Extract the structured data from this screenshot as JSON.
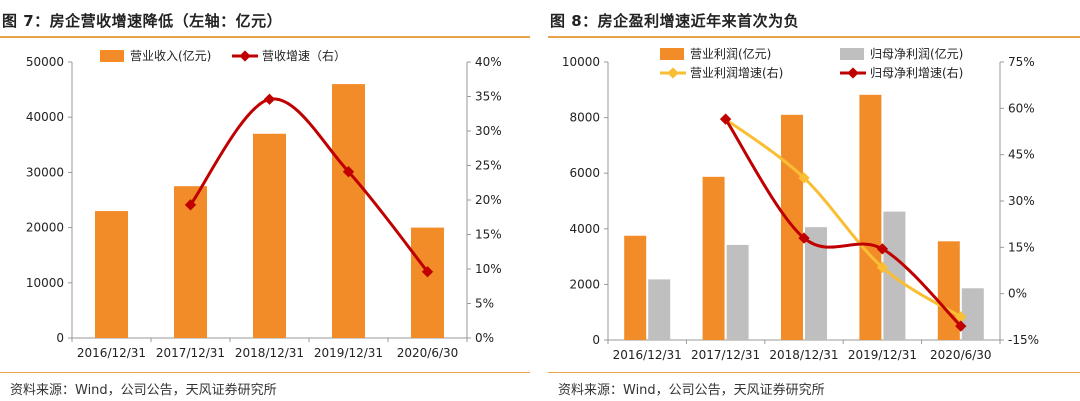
{
  "colors": {
    "bar_orange": "#f28c28",
    "bar_gray": "#bfbfbf",
    "line_red": "#c00000",
    "line_yellow": "#f9be33",
    "rule": "#e8a34a"
  },
  "left": {
    "title": "图 7：房企营收增速降低（左轴：亿元）",
    "source": "资料来源：Wind，公司公告，天风证券研究所"
  },
  "right": {
    "title": "图 8：房企盈利增速近年来首次为负",
    "source": "资料来源：Wind，公司公告，天风证券研究所"
  },
  "chart_data": [
    {
      "type": "bar",
      "categories": [
        "2016/12/31",
        "2017/12/31",
        "2018/12/31",
        "2019/12/31",
        "2020/6/30"
      ],
      "series": [
        {
          "name": "营业收入(亿元)",
          "type": "bar",
          "axis": "left",
          "color": "#f28c28",
          "values": [
            23000,
            27500,
            37000,
            46000,
            20000
          ]
        },
        {
          "name": "营收增速（右）",
          "type": "line",
          "axis": "right",
          "color": "#c00000",
          "values": [
            null,
            19.3,
            34.6,
            24.1,
            9.6
          ]
        }
      ],
      "ylim_left": [
        0,
        50000
      ],
      "yticks_left": [
        "0",
        "10000",
        "20000",
        "30000",
        "40000",
        "50000"
      ],
      "ylim_right": [
        0,
        40
      ],
      "yticks_right": [
        "0%",
        "5%",
        "10%",
        "15%",
        "20%",
        "25%",
        "30%",
        "35%",
        "40%"
      ],
      "legend": "top"
    },
    {
      "type": "bar",
      "categories": [
        "2016/12/31",
        "2017/12/31",
        "2018/12/31",
        "2019/12/31",
        "2020/6/30"
      ],
      "series": [
        {
          "name": "营业利润(亿元)",
          "type": "bar",
          "axis": "left",
          "color": "#f28c28",
          "values": [
            3750,
            5870,
            8100,
            8820,
            3550
          ]
        },
        {
          "name": "归母净利润(亿元)",
          "type": "bar",
          "axis": "left",
          "color": "#bfbfbf",
          "values": [
            2180,
            3420,
            4060,
            4620,
            1860
          ]
        },
        {
          "name": "营业利润增速(右)",
          "type": "line",
          "axis": "right",
          "color": "#f9be33",
          "values": [
            null,
            56.5,
            37.5,
            8.5,
            -7.5
          ]
        },
        {
          "name": "归母净利增速(右)",
          "type": "line",
          "axis": "right",
          "color": "#c00000",
          "values": [
            null,
            56.5,
            18.0,
            14.5,
            -10.5
          ]
        }
      ],
      "ylim_left": [
        0,
        10000
      ],
      "yticks_left": [
        "0",
        "2000",
        "4000",
        "6000",
        "8000",
        "10000"
      ],
      "ylim_right": [
        -15,
        75
      ],
      "yticks_right": [
        "-15%",
        "0%",
        "15%",
        "30%",
        "45%",
        "60%",
        "75%"
      ],
      "legend": "top"
    }
  ]
}
